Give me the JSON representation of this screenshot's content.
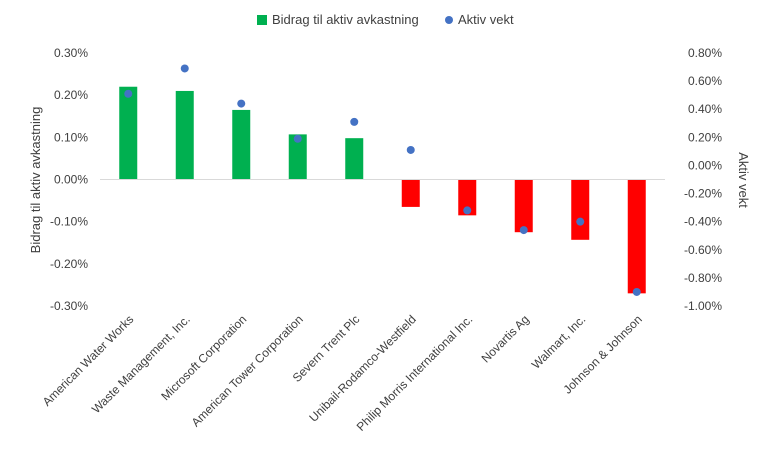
{
  "chart_data": {
    "type": "bar",
    "categories": [
      "American Water Works",
      "Waste Management, Inc.",
      "Microsoft Corporation",
      "American Tower Corporation",
      "Severn Trent Plc",
      "Unibail-Rodamco-Westfield",
      "Philip Morris International Inc.",
      "Novartis Ag",
      "Walmart, Inc.",
      "Johnson & Johnson"
    ],
    "series": [
      {
        "name": "Bidrag til aktiv avkastning",
        "type": "bar",
        "axis": "left",
        "unit": "%",
        "values": [
          0.22,
          0.21,
          0.165,
          0.107,
          0.098,
          -0.065,
          -0.085,
          -0.125,
          -0.143,
          -0.27
        ],
        "color_positive": "#00b050",
        "color_negative": "#ff0000"
      },
      {
        "name": "Aktiv vekt",
        "type": "scatter",
        "axis": "right",
        "unit": "%",
        "values": [
          0.51,
          0.69,
          0.44,
          0.19,
          0.31,
          0.11,
          -0.32,
          -0.46,
          -0.4,
          -0.9
        ],
        "color": "#4472c4"
      }
    ],
    "ylabel": "Bidrag til aktiv avkastning",
    "y2label": "Aktiv vekt",
    "ylim": [
      -0.3,
      0.3
    ],
    "y2lim": [
      -1.0,
      0.8
    ],
    "yticks": [
      "0.30%",
      "0.20%",
      "0.10%",
      "0.00%",
      "-0.10%",
      "-0.20%",
      "-0.30%"
    ],
    "y2ticks": [
      "0.80%",
      "0.60%",
      "0.40%",
      "0.20%",
      "0.00%",
      "-0.20%",
      "-0.40%",
      "-0.60%",
      "-0.80%",
      "-1.00%"
    ],
    "legend_position": "top-center",
    "grid": false
  }
}
